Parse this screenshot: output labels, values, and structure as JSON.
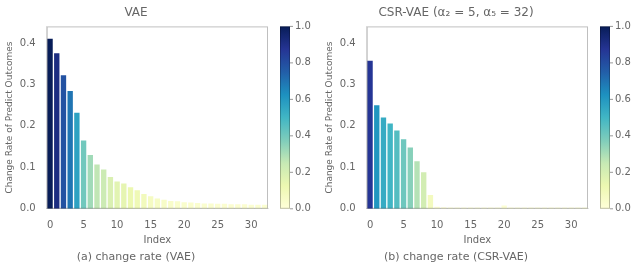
{
  "chart_data": [
    {
      "type": "bar",
      "title": "VAE",
      "caption": "(a) change rate (VAE)",
      "xlabel": "Index",
      "ylabel": "Change Rate of Predict Outcomes",
      "x": [
        0,
        1,
        2,
        3,
        4,
        5,
        6,
        7,
        8,
        9,
        10,
        11,
        12,
        13,
        14,
        15,
        16,
        17,
        18,
        19,
        20,
        21,
        22,
        23,
        24,
        25,
        26,
        27,
        28,
        29,
        30,
        31,
        32
      ],
      "values": [
        0.41,
        0.375,
        0.322,
        0.284,
        0.232,
        0.165,
        0.13,
        0.107,
        0.095,
        0.077,
        0.066,
        0.061,
        0.052,
        0.045,
        0.036,
        0.03,
        0.025,
        0.022,
        0.019,
        0.018,
        0.016,
        0.015,
        0.014,
        0.013,
        0.013,
        0.012,
        0.012,
        0.011,
        0.011,
        0.011,
        0.01,
        0.01,
        0.01
      ],
      "colors": [
        "#081d58",
        "#1c2d81",
        "#2352a2",
        "#2075b3",
        "#2ea2c2",
        "#71c8bd",
        "#a0dab8",
        "#c1e6b5",
        "#ccebb4",
        "#daf0b2",
        "#e2f4b2",
        "#e6f5b2",
        "#ecf8b1",
        "#eff9b6",
        "#f2fabd",
        "#f5fbc2",
        "#f6fcc5",
        "#f7fcc8",
        "#f8fcca",
        "#f9fdcb",
        "#f9fdcc",
        "#fafdcd",
        "#fafdce",
        "#fafdcf",
        "#fafdcf",
        "#fbfdd0",
        "#fbfdd0",
        "#fbfdd0",
        "#fbfdd0",
        "#fbfdd0",
        "#fbfed1",
        "#fbfed1",
        "#fbfed1"
      ],
      "xlim": [
        -0.5,
        32.5
      ],
      "xticks": [
        0,
        5,
        10,
        15,
        20,
        25,
        30
      ],
      "ylim": [
        0,
        0.44
      ],
      "yticks": [
        {
          "value": 0,
          "label": "0.0"
        },
        0.1,
        0.2,
        0.3,
        0.4
      ],
      "grid": false,
      "colorbar_range": [
        0,
        1
      ],
      "colorbar_ticks": [
        {
          "value": 0,
          "label": "0.0"
        },
        0.2,
        0.4,
        0.6,
        0.8,
        {
          "value": 1,
          "label": "1.0"
        }
      ]
    },
    {
      "type": "bar",
      "title": "CSR-VAE (α₂ = 5, α₅ = 32)",
      "caption": "(b) change rate (CSR-VAE)",
      "xlabel": "Index",
      "ylabel": "Change Rate of Predict Outcomes",
      "x": [
        0,
        1,
        2,
        3,
        4,
        5,
        6,
        7,
        8,
        9,
        10,
        11,
        12,
        13,
        14,
        15,
        16,
        17,
        18,
        19,
        20,
        21,
        22,
        23,
        24,
        25,
        26,
        27,
        28,
        29,
        30,
        31,
        32
      ],
      "values": [
        0.357,
        0.25,
        0.22,
        0.206,
        0.189,
        0.168,
        0.148,
        0.115,
        0.088,
        0.033,
        0.005,
        0.004,
        0.003,
        0.003,
        0.003,
        0.003,
        0.003,
        0.003,
        0.003,
        0.003,
        0.008,
        0.003,
        0.003,
        0.003,
        0.003,
        0.003,
        0.003,
        0.003,
        0.003,
        0.003,
        0.003,
        0.003,
        0.003
      ],
      "colors": [
        "#253595",
        "#2196c0",
        "#36abc3",
        "#40b5c4",
        "#54bdc1",
        "#6ec7be",
        "#87d0ba",
        "#b5e2b6",
        "#d2edb3",
        "#f3fabf",
        "#fdfed5",
        "#fefed6",
        "#feffd7",
        "#feffd7",
        "#feffd7",
        "#feffd7",
        "#feffd7",
        "#feffd7",
        "#feffd7",
        "#feffd7",
        "#fcfed3",
        "#feffd7",
        "#feffd7",
        "#feffd7",
        "#feffd7",
        "#feffd7",
        "#feffd7",
        "#feffd7",
        "#feffd7",
        "#feffd7",
        "#feffd7",
        "#feffd7",
        "#feffd7"
      ],
      "xlim": [
        -0.5,
        32.5
      ],
      "xticks": [
        0,
        5,
        10,
        15,
        20,
        25,
        30
      ],
      "ylim": [
        0,
        0.44
      ],
      "yticks": [
        {
          "value": 0,
          "label": "0.0"
        },
        0.1,
        0.2,
        0.3,
        0.4
      ],
      "grid": false,
      "colorbar_range": [
        0,
        1
      ],
      "colorbar_ticks": [
        {
          "value": 0,
          "label": "0.0"
        },
        0.2,
        0.4,
        0.6,
        0.8,
        {
          "value": 1,
          "label": "1.0"
        }
      ]
    }
  ]
}
